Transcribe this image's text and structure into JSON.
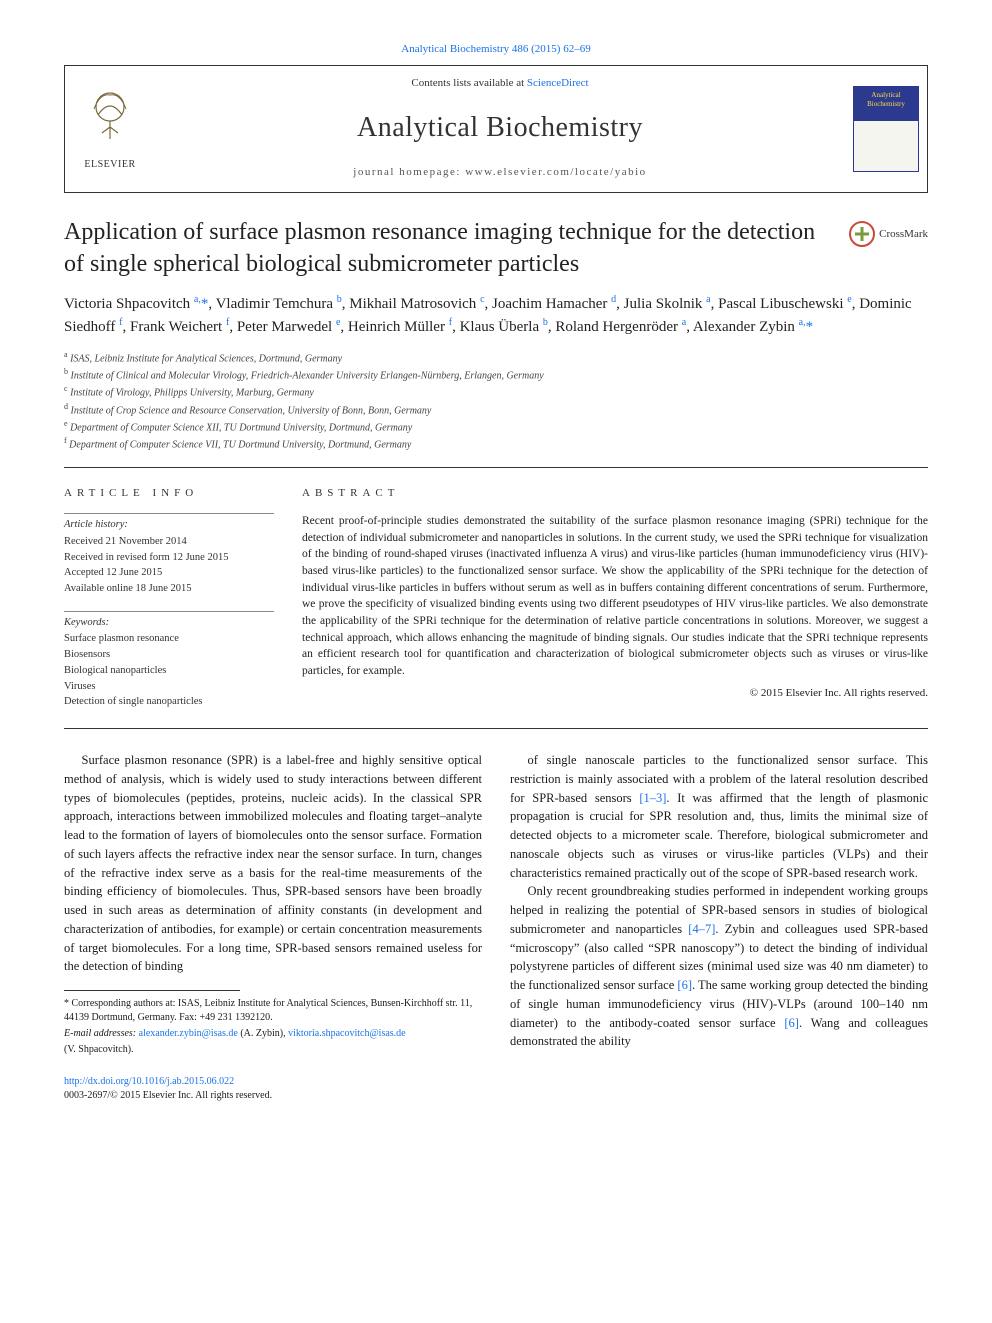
{
  "citation_line": "Analytical Biochemistry 486 (2015) 62–69",
  "header": {
    "contents_prefix": "Contents lists available at ",
    "contents_link": "ScienceDirect",
    "journal_name": "Analytical Biochemistry",
    "homepage_prefix": "journal homepage: ",
    "homepage_url": "www.elsevier.com/locate/yabio",
    "publisher_word": "ELSEVIER",
    "cover_title_line1": "Analytical",
    "cover_title_line2": "Biochemistry"
  },
  "crossmark_label": "CrossMark",
  "title": "Application of surface plasmon resonance imaging technique for the detection of single spherical biological submicrometer particles",
  "authors_html": "Victoria Shpacovitch <sup>a,</sup><span class='ast'>*</span>, Vladimir Temchura <sup>b</sup>, Mikhail Matrosovich <sup>c</sup>, Joachim Hamacher <sup>d</sup>, Julia Skolnik <sup>a</sup>, Pascal Libuschewski <sup>e</sup>, Dominic Siedhoff <sup>f</sup>, Frank Weichert <sup>f</sup>, Peter Marwedel <sup>e</sup>, Heinrich Müller <sup>f</sup>, Klaus Überla <sup>b</sup>, Roland Hergenröder <sup>a</sup>, Alexander Zybin <sup>a,</sup><span class='ast'>*</span>",
  "affiliations": [
    {
      "key": "a",
      "text": "ISAS, Leibniz Institute for Analytical Sciences, Dortmund, Germany"
    },
    {
      "key": "b",
      "text": "Institute of Clinical and Molecular Virology, Friedrich-Alexander University Erlangen-Nürnberg, Erlangen, Germany"
    },
    {
      "key": "c",
      "text": "Institute of Virology, Philipps University, Marburg, Germany"
    },
    {
      "key": "d",
      "text": "Institute of Crop Science and Resource Conservation, University of Bonn, Bonn, Germany"
    },
    {
      "key": "e",
      "text": "Department of Computer Science XII, TU Dortmund University, Dortmund, Germany"
    },
    {
      "key": "f",
      "text": "Department of Computer Science VII, TU Dortmund University, Dortmund, Germany"
    }
  ],
  "article_info_heading": "ARTICLE INFO",
  "abstract_heading": "ABSTRACT",
  "history_label": "Article history:",
  "history": [
    "Received 21 November 2014",
    "Received in revised form 12 June 2015",
    "Accepted 12 June 2015",
    "Available online 18 June 2015"
  ],
  "keywords_label": "Keywords:",
  "keywords": [
    "Surface plasmon resonance",
    "Biosensors",
    "Biological nanoparticles",
    "Viruses",
    "Detection of single nanoparticles"
  ],
  "abstract_text": "Recent proof-of-principle studies demonstrated the suitability of the surface plasmon resonance imaging (SPRi) technique for the detection of individual submicrometer and nanoparticles in solutions. In the current study, we used the SPRi technique for visualization of the binding of round-shaped viruses (inactivated influenza A virus) and virus-like particles (human immunodeficiency virus (HIV)-based virus-like particles) to the functionalized sensor surface. We show the applicability of the SPRi technique for the detection of individual virus-like particles in buffers without serum as well as in buffers containing different concentrations of serum. Furthermore, we prove the specificity of visualized binding events using two different pseudotypes of HIV virus-like particles. We also demonstrate the applicability of the SPRi technique for the determination of relative particle concentrations in solutions. Moreover, we suggest a technical approach, which allows enhancing the magnitude of binding signals. Our studies indicate that the SPRi technique represents an efficient research tool for quantification and characterization of biological submicrometer objects such as viruses or virus-like particles, for example.",
  "copyright": "© 2015 Elsevier Inc. All rights reserved.",
  "body_paragraphs": [
    "Surface plasmon resonance (SPR) is a label-free and highly sensitive optical method of analysis, which is widely used to study interactions between different types of biomolecules (peptides, proteins, nucleic acids). In the classical SPR approach, interactions between immobilized molecules and floating target–analyte lead to the formation of layers of biomolecules onto the sensor surface. Formation of such layers affects the refractive index near the sensor surface. In turn, changes of the refractive index serve as a basis for the real-time measurements of the binding efficiency of biomolecules. Thus, SPR-based sensors have been broadly used in such areas as determination of affinity constants (in development and characterization of antibodies, for example) or certain concentration measurements of target biomolecules. For a long time, SPR-based sensors remained useless for the detection of binding",
    "of single nanoscale particles to the functionalized sensor surface. This restriction is mainly associated with a problem of the lateral resolution described for SPR-based sensors [1–3]. It was affirmed that the length of plasmonic propagation is crucial for SPR resolution and, thus, limits the minimal size of detected objects to a micrometer scale. Therefore, biological submicrometer and nanoscale objects such as viruses or virus-like particles (VLPs) and their characteristics remained practically out of the scope of SPR-based research work.",
    "Only recent groundbreaking studies performed in independent working groups helped in realizing the potential of SPR-based sensors in studies of biological submicrometer and nanoparticles [4–7]. Zybin and colleagues used SPR-based “microscopy” (also called “SPR nanoscopy”) to detect the binding of individual polystyrene particles of different sizes (minimal used size was 40 nm diameter) to the functionalized sensor surface [6]. The same working group detected the binding of single human immunodeficiency virus (HIV)-VLPs (around 100–140 nm diameter) to the antibody-coated sensor surface [6]. Wang and colleagues demonstrated the ability"
  ],
  "ref_links": {
    "r1_3": "[1–3]",
    "r4_7": "[4–7]",
    "r6a": "[6]",
    "r6b": "[6]"
  },
  "footnotes": {
    "corr_marker": "*",
    "corr_text": "Corresponding authors at: ISAS, Leibniz Institute for Analytical Sciences, Bunsen-Kirchhoff str. 11, 44139 Dortmund, Germany. Fax: +49 231 1392120.",
    "email_label": "E-mail addresses:",
    "email1": "alexander.zybin@isas.de",
    "email1_who": "(A. Zybin),",
    "email2": "viktoria.shpacovitch@isas.de",
    "email2_who": "(V. Shpacovitch)."
  },
  "footer": {
    "doi": "http://dx.doi.org/10.1016/j.ab.2015.06.022",
    "issn_line": "0003-2697/© 2015 Elsevier Inc. All rights reserved."
  },
  "colors": {
    "link": "#1a73e8",
    "rule": "#333333",
    "cover_bg": "#2b3a8f",
    "cover_text": "#ffd94a",
    "crossmark_ring": "#c84b3a",
    "crossmark_cross": "#7a9a3e"
  }
}
